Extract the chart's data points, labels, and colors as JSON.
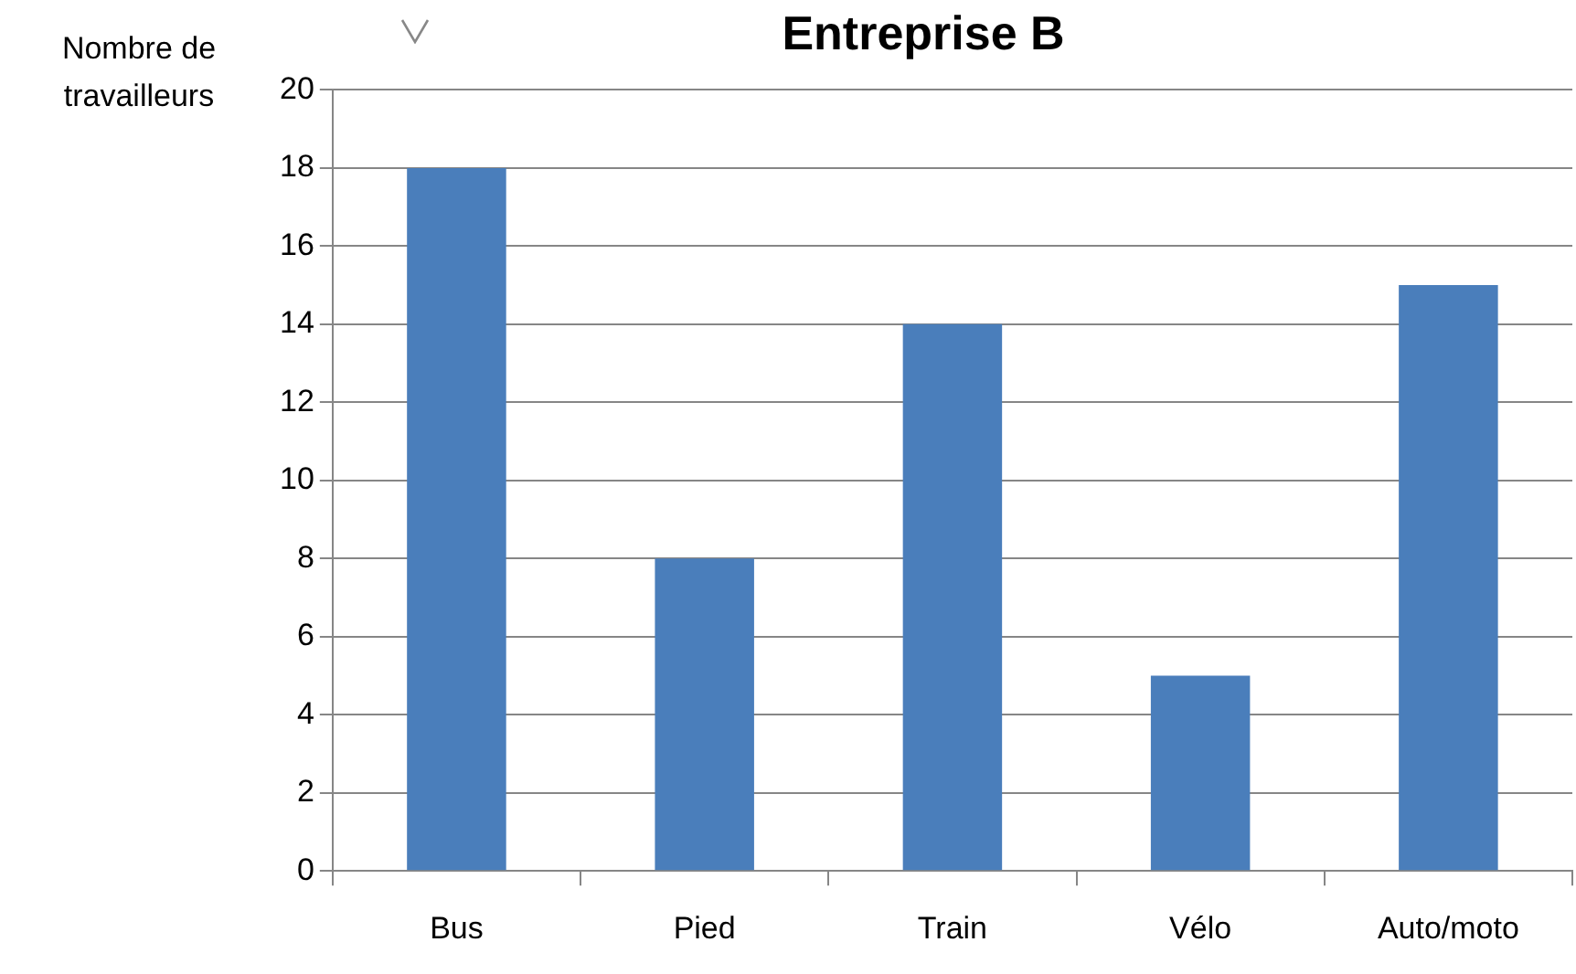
{
  "chart_data": {
    "type": "bar",
    "title": "Entreprise B",
    "ylabel": "Nombre de travailleurs",
    "categories": [
      "Bus",
      "Pied",
      "Train",
      "Vélo",
      "Auto/moto"
    ],
    "values": [
      18,
      8,
      14,
      5,
      15
    ],
    "color": "#4a7ebb",
    "ylim": [
      0,
      20
    ],
    "yticks": [
      0,
      2,
      4,
      6,
      8,
      10,
      12,
      14,
      16,
      18,
      20
    ],
    "grid": "y"
  }
}
